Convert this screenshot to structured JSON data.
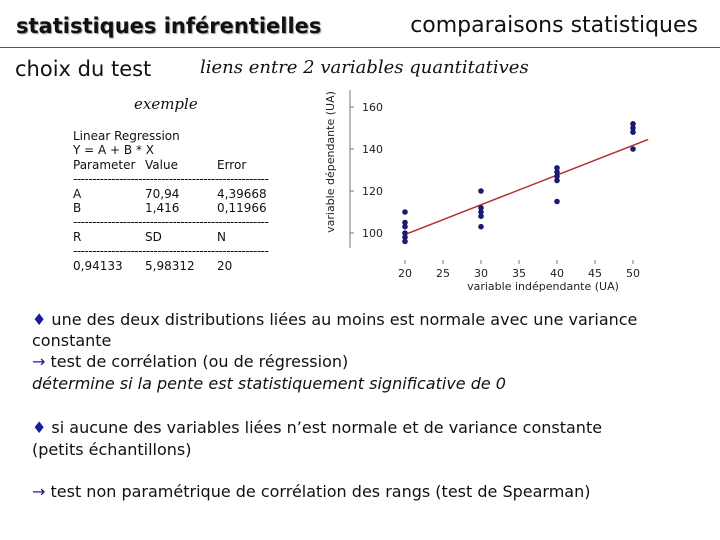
{
  "header": {
    "title": "statistiques inférentielles",
    "section": "comparaisons statistiques",
    "subtitle_left": "choix du test",
    "subtitle_center": "liens entre 2 variables quantitatives"
  },
  "example": {
    "label": "exemple",
    "lines": [
      [
        "Linear Regression",
        "",
        ""
      ],
      [
        "Y = A + B * X",
        "",
        ""
      ],
      [
        "Parameter",
        "Value",
        "Error"
      ],
      [
        "SEP",
        "",
        ""
      ],
      [
        "A",
        "70,94",
        "4,39668"
      ],
      [
        "B",
        "1,416",
        "0,11966"
      ],
      [
        "SEP",
        "",
        ""
      ],
      [
        "R",
        "SD",
        "N"
      ],
      [
        "SEP",
        "",
        ""
      ],
      [
        "0,94133",
        "5,98312",
        "20"
      ]
    ]
  },
  "chart_data": {
    "type": "scatter",
    "xlabel": "variable indépendante (UA)",
    "ylabel": "variable dépendante (UA)",
    "x_ticks": [
      20,
      25,
      30,
      35,
      40,
      45,
      50
    ],
    "y_ticks": [
      100,
      120,
      140,
      160
    ],
    "xlim": [
      20,
      50
    ],
    "ylim": [
      90,
      165
    ],
    "points": [
      {
        "x": 20,
        "y": 96
      },
      {
        "x": 20,
        "y": 98
      },
      {
        "x": 20,
        "y": 100
      },
      {
        "x": 20,
        "y": 103
      },
      {
        "x": 20,
        "y": 105
      },
      {
        "x": 20,
        "y": 110
      },
      {
        "x": 30,
        "y": 103
      },
      {
        "x": 30,
        "y": 108
      },
      {
        "x": 30,
        "y": 110
      },
      {
        "x": 30,
        "y": 112
      },
      {
        "x": 30,
        "y": 120
      },
      {
        "x": 40,
        "y": 115
      },
      {
        "x": 40,
        "y": 125
      },
      {
        "x": 40,
        "y": 127
      },
      {
        "x": 40,
        "y": 129
      },
      {
        "x": 40,
        "y": 131
      },
      {
        "x": 50,
        "y": 140
      },
      {
        "x": 50,
        "y": 148
      },
      {
        "x": 50,
        "y": 150
      },
      {
        "x": 50,
        "y": 152
      }
    ],
    "regression": {
      "intercept": 70.94,
      "slope": 1.416
    },
    "colors": {
      "points": "#1a1a6e",
      "line": "#b03030"
    }
  },
  "notes": {
    "bullet_glyph": "♦",
    "arrow_glyph": "→",
    "p1_line1": " une des deux distributions liées au moins est normale avec une variance",
    "p1_line2": "constante",
    "p1_line3": " test de corrélation (ou de régression)",
    "p1_line4": "détermine si la pente est statistiquement significative de 0",
    "p2_line1": " si aucune des variables liées n’est normale et de variance constante",
    "p2_line2": "(petits échantillons)",
    "p3_line1": " test non paramétrique de corrélation des rangs (test de Spearman)"
  }
}
